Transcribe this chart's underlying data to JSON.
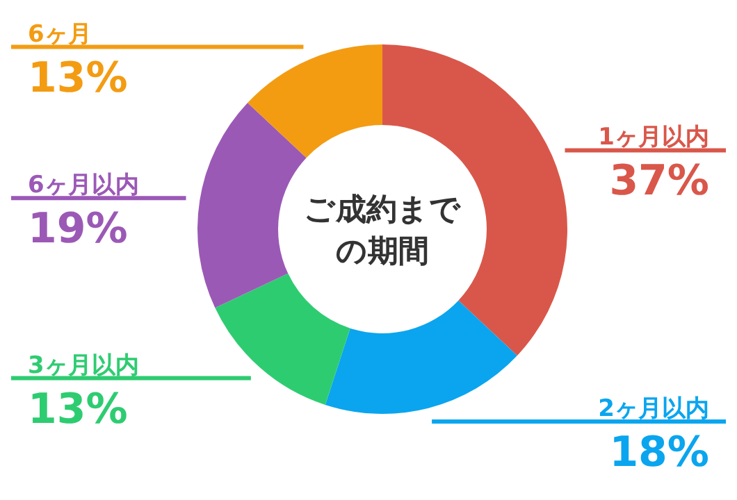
{
  "chart_data": {
    "type": "donut",
    "title": "ご成約までの期間",
    "categories": [
      "1ヶ月以内",
      "2ヶ月以内",
      "3ヶ月以内",
      "6ヶ月以内",
      "6ヶ月"
    ],
    "values": [
      37,
      18,
      13,
      19,
      13
    ],
    "value_labels": [
      "37%",
      "18%",
      "13%",
      "19%",
      "13%"
    ],
    "colors": [
      "#d9574a",
      "#0aa5ee",
      "#2ecc71",
      "#9b59b6",
      "#f39c12"
    ]
  }
}
